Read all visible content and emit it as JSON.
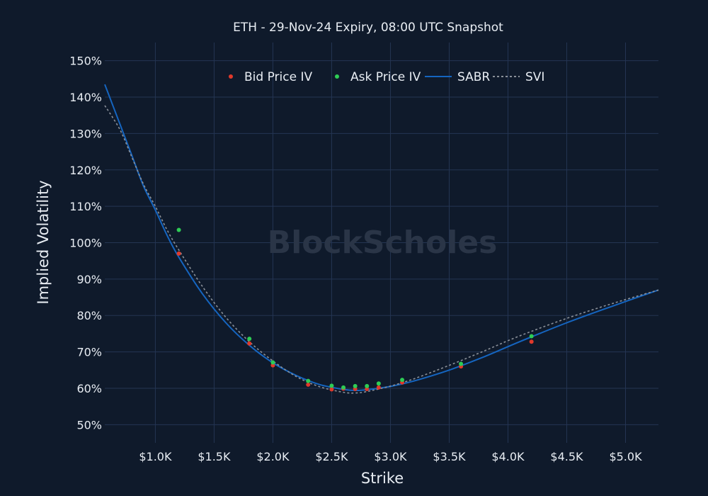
{
  "chart_data": {
    "type": "scatter",
    "title": "ETH - 29-Nov-24 Expiry, 08:00 UTC Snapshot",
    "xlabel": "Strike",
    "ylabel": "Implied Volatility",
    "watermark": "BlockScholes",
    "xlim": [
      570,
      5280
    ],
    "ylim": [
      45,
      155
    ],
    "x_ticks": [
      1000,
      1500,
      2000,
      2500,
      3000,
      3500,
      4000,
      4500,
      5000
    ],
    "x_tick_labels": [
      "$1.0K",
      "$1.5K",
      "$2.0K",
      "$2.5K",
      "$3.0K",
      "$3.5K",
      "$4.0K",
      "$4.5K",
      "$5.0K"
    ],
    "y_ticks": [
      50,
      60,
      70,
      80,
      90,
      100,
      110,
      120,
      130,
      140,
      150
    ],
    "y_tick_labels": [
      "50%",
      "60%",
      "70%",
      "80%",
      "90%",
      "100%",
      "110%",
      "120%",
      "130%",
      "140%",
      "150%"
    ],
    "grid": true,
    "legend_position": "top-center",
    "series": [
      {
        "name": "Bid Price IV",
        "kind": "markers",
        "color": "#e0392b",
        "points": [
          [
            1200,
            97.0
          ],
          [
            1800,
            72.3
          ],
          [
            2000,
            66.3
          ],
          [
            2300,
            61.0
          ],
          [
            2500,
            59.7
          ],
          [
            2600,
            59.9
          ],
          [
            2700,
            59.8
          ],
          [
            2800,
            59.8
          ],
          [
            2900,
            60.2
          ],
          [
            3100,
            61.6
          ],
          [
            3600,
            66.0
          ],
          [
            4200,
            72.8
          ]
        ]
      },
      {
        "name": "Ask Price IV",
        "kind": "markers",
        "color": "#2ecc55",
        "points": [
          [
            1200,
            103.5
          ],
          [
            1800,
            73.6
          ],
          [
            2000,
            67.1
          ],
          [
            2300,
            62.0
          ],
          [
            2500,
            60.7
          ],
          [
            2600,
            60.2
          ],
          [
            2700,
            60.6
          ],
          [
            2800,
            60.6
          ],
          [
            2900,
            61.3
          ],
          [
            3100,
            62.3
          ],
          [
            3600,
            66.7
          ],
          [
            4200,
            74.3
          ]
        ]
      },
      {
        "name": "SABR",
        "kind": "line",
        "color": "#1565c0",
        "points": [
          [
            570,
            143.5
          ],
          [
            700,
            132.5
          ],
          [
            800,
            124.0
          ],
          [
            900,
            115.5
          ],
          [
            1000,
            109.0
          ],
          [
            1100,
            102.0
          ],
          [
            1200,
            96.0
          ],
          [
            1400,
            86.0
          ],
          [
            1600,
            78.0
          ],
          [
            1800,
            71.8
          ],
          [
            2000,
            67.0
          ],
          [
            2200,
            63.5
          ],
          [
            2400,
            61.0
          ],
          [
            2600,
            59.7
          ],
          [
            2700,
            59.4
          ],
          [
            2800,
            59.6
          ],
          [
            3000,
            60.5
          ],
          [
            3200,
            62.0
          ],
          [
            3500,
            65.0
          ],
          [
            3800,
            68.7
          ],
          [
            4100,
            72.8
          ],
          [
            4500,
            78.0
          ],
          [
            4900,
            82.7
          ],
          [
            5280,
            87.0
          ]
        ]
      },
      {
        "name": "SVI",
        "kind": "line",
        "color": "#8a9099",
        "dash": true,
        "points": [
          [
            570,
            137.7
          ],
          [
            700,
            131.0
          ],
          [
            800,
            123.5
          ],
          [
            900,
            116.0
          ],
          [
            1000,
            110.0
          ],
          [
            1100,
            103.5
          ],
          [
            1200,
            98.0
          ],
          [
            1400,
            88.0
          ],
          [
            1600,
            79.5
          ],
          [
            1800,
            72.8
          ],
          [
            2000,
            67.5
          ],
          [
            2200,
            63.2
          ],
          [
            2400,
            60.4
          ],
          [
            2600,
            58.9
          ],
          [
            2700,
            58.7
          ],
          [
            2800,
            59.1
          ],
          [
            3000,
            60.6
          ],
          [
            3200,
            62.6
          ],
          [
            3500,
            66.3
          ],
          [
            3800,
            70.3
          ],
          [
            4100,
            74.4
          ],
          [
            4500,
            79.2
          ],
          [
            4900,
            83.4
          ],
          [
            5280,
            87.0
          ]
        ]
      }
    ]
  }
}
